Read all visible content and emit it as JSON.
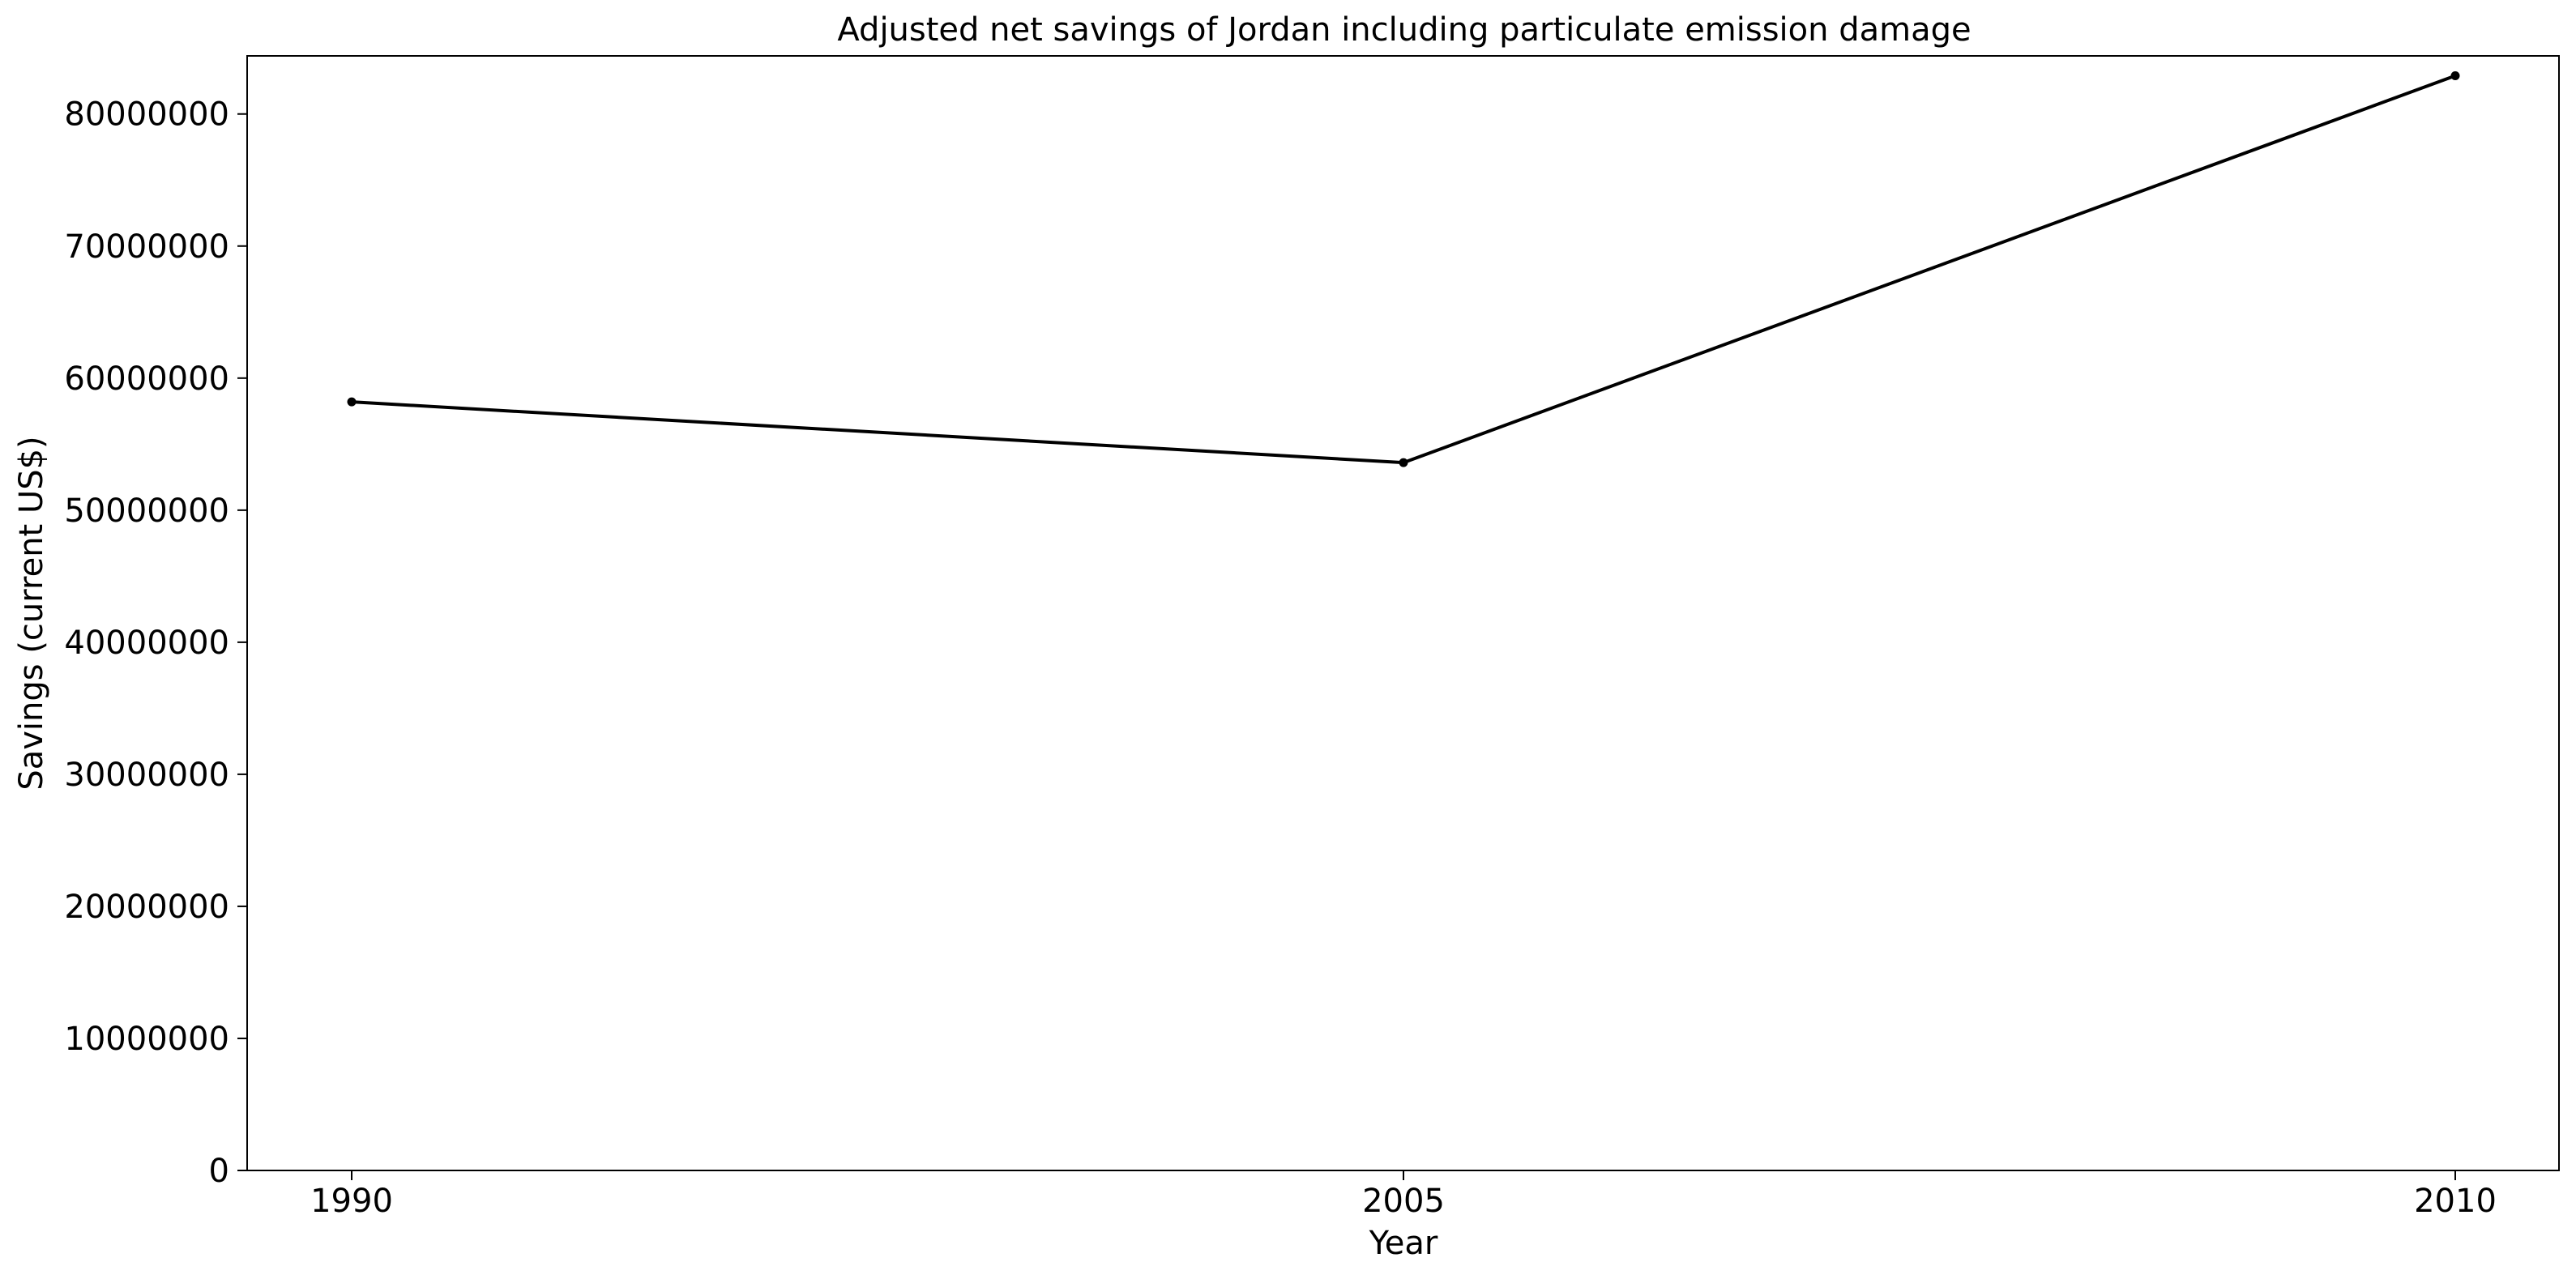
{
  "chart_data": {
    "type": "line",
    "title": "Adjusted net savings of Jordan including particulate emission damage",
    "xlabel": "Year",
    "ylabel": "Savings (current US$)",
    "categories": [
      "1990",
      "2005",
      "2010"
    ],
    "series": [
      {
        "values": [
          58200000,
          53600000,
          82900000
        ]
      }
    ],
    "yticks": [
      "0",
      "10000000",
      "20000000",
      "30000000",
      "40000000",
      "50000000",
      "60000000",
      "70000000",
      "80000000"
    ],
    "ylim": [
      0,
      84400000
    ],
    "grid": false,
    "legend": "none",
    "line_color": "#000000",
    "marker": "dot"
  }
}
